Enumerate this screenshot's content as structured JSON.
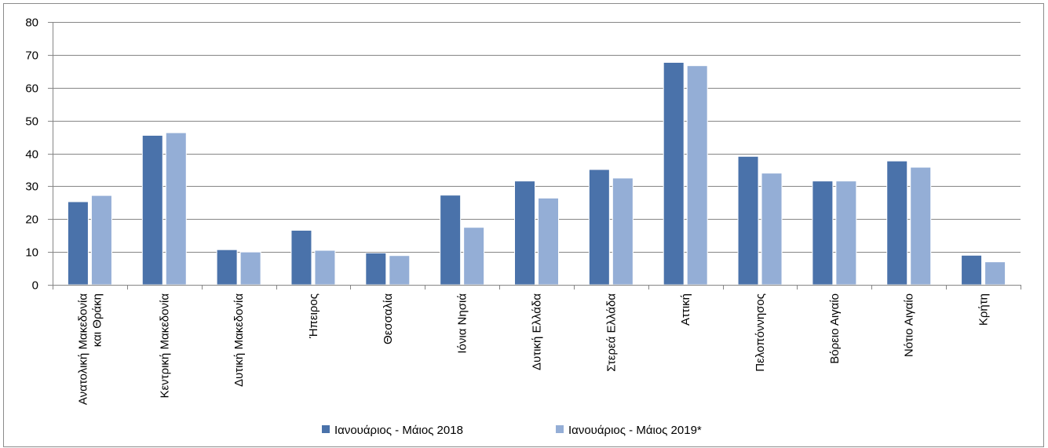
{
  "chart_data": {
    "type": "bar",
    "title": "",
    "xlabel": "",
    "ylabel": "",
    "ylim": [
      0,
      80
    ],
    "yticks": [
      0,
      10,
      20,
      30,
      40,
      50,
      60,
      70,
      80
    ],
    "grid": true,
    "legend_position": "bottom",
    "categories": [
      [
        "Ανατολική Μακεδονία",
        "και Θράκη"
      ],
      [
        "Κεντρική Μακεδονία"
      ],
      [
        "Δυτική Μακεδονία"
      ],
      [
        "Ήπειρος"
      ],
      [
        "Θεσσαλία"
      ],
      [
        "Ιόνια Νησιά"
      ],
      [
        "Δυτική Ελλάδα"
      ],
      [
        "Στερεά Ελλάδα"
      ],
      [
        "Αττική"
      ],
      [
        "Πελοπόννησος"
      ],
      [
        "Βόρειο Αιγαίο"
      ],
      [
        "Νότιο Αιγαίο"
      ],
      [
        "Κρήτη"
      ]
    ],
    "series": [
      {
        "name": "Ιανουάριος - Μάιος 2018",
        "color": "#4a72aa",
        "values": [
          25.3,
          45.5,
          10.7,
          16.6,
          9.7,
          27.3,
          31.6,
          35.1,
          67.7,
          39.1,
          31.6,
          37.7,
          9.0
        ]
      },
      {
        "name": "Ιανουάριος - Μάιος 2019*",
        "color": "#94aed6",
        "values": [
          27.2,
          46.3,
          10.0,
          10.5,
          8.9,
          17.5,
          26.4,
          32.5,
          66.7,
          34.0,
          31.6,
          35.8,
          7.0
        ]
      }
    ],
    "colors": {
      "grid": "#868686",
      "axis": "#868686",
      "frame": "#8c8c8c"
    }
  }
}
